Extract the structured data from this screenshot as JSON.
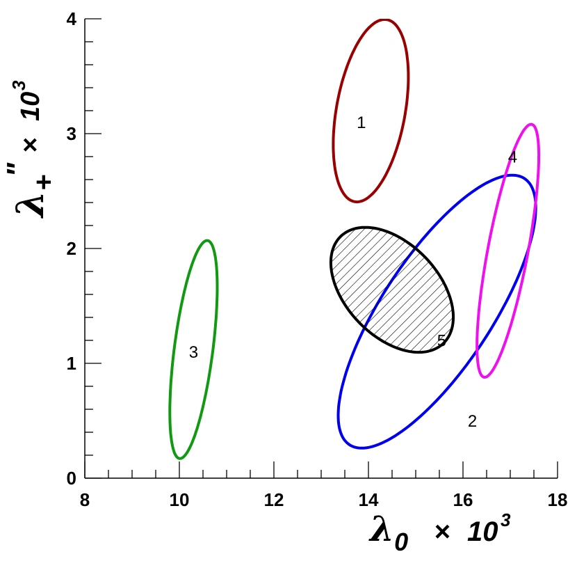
{
  "chart_data": {
    "type": "scatter",
    "xlim": [
      8,
      18
    ],
    "ylim": [
      0,
      4
    ],
    "x_ticks": [
      "8",
      "10",
      "12",
      "14",
      "16",
      "18"
    ],
    "y_ticks": [
      "0",
      "1",
      "2",
      "3",
      "4"
    ],
    "xlabel": {
      "symbol": "λ",
      "subscript": "0",
      "times": "×",
      "ten": "10",
      "exponent": "3"
    },
    "ylabel": {
      "symbol": "λ",
      "subscript": "+",
      "prime": "\"",
      "times": "×",
      "ten": "10",
      "exponent": "3"
    },
    "grid": false,
    "series": [
      {
        "label": "1",
        "color": "#990000",
        "center": [
          14.05,
          3.2
        ],
        "semi_axes": [
          0.93,
          0.63
        ],
        "rotation_deg": 45,
        "hatched": false
      },
      {
        "label": "2",
        "color": "#0000ee",
        "center": [
          15.45,
          1.45
        ],
        "semi_axes": [
          2.3,
          0.7
        ],
        "rotation_deg": 26,
        "hatched": false
      },
      {
        "label": "3",
        "color": "#119911",
        "center": [
          10.3,
          1.12
        ],
        "semi_axes": [
          1.0,
          0.39
        ],
        "rotation_deg": 70,
        "hatched": false
      },
      {
        "label": "4",
        "color": "#ee11ee",
        "center": [
          16.95,
          1.98
        ],
        "semi_axes": [
          1.22,
          0.39
        ],
        "rotation_deg": 63,
        "hatched": false
      },
      {
        "label": "5",
        "color": "#000000",
        "center": [
          14.5,
          1.64
        ],
        "semi_axes": [
          1.32,
          0.48
        ],
        "rotation_deg": -12,
        "hatched": true
      }
    ],
    "annotations": [
      {
        "text": "1",
        "x": 13.85,
        "y": 3.05
      },
      {
        "text": "2",
        "x": 16.2,
        "y": 0.45
      },
      {
        "text": "3",
        "x": 10.3,
        "y": 1.05
      },
      {
        "text": "4",
        "x": 17.05,
        "y": 2.75
      },
      {
        "text": "5",
        "x": 15.55,
        "y": 1.15
      }
    ]
  }
}
